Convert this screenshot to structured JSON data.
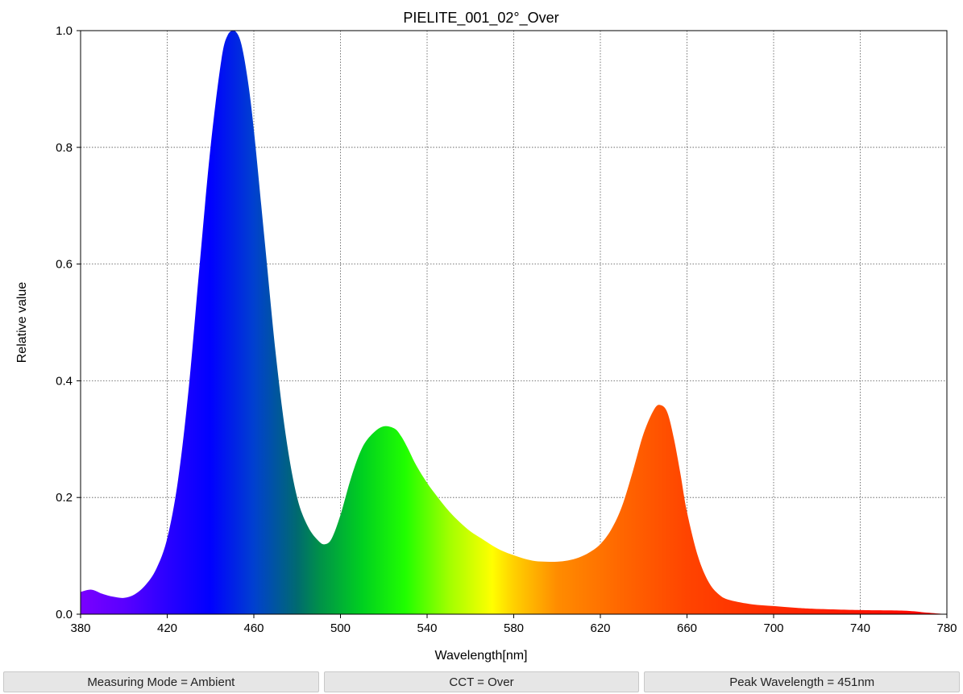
{
  "chart_data": {
    "type": "area",
    "title": "PIELITE_001_02°_Over",
    "xlabel": "Wavelength[nm]",
    "ylabel": "Relative value",
    "xlim": [
      380,
      780
    ],
    "ylim": [
      0,
      1.0
    ],
    "grid": true,
    "x_ticks": [
      380,
      420,
      460,
      500,
      540,
      580,
      620,
      660,
      700,
      740,
      780
    ],
    "y_ticks": [
      0.0,
      0.2,
      0.4,
      0.6,
      0.8,
      1.0
    ],
    "x_tick_labels": [
      "380",
      "420",
      "460",
      "500",
      "540",
      "580",
      "620",
      "660",
      "700",
      "740",
      "780"
    ],
    "y_tick_labels": [
      "0.0",
      "0.2",
      "0.4",
      "0.6",
      "0.8",
      "1.0"
    ],
    "x": [
      380,
      385,
      390,
      395,
      400,
      405,
      410,
      415,
      420,
      425,
      430,
      435,
      440,
      445,
      448,
      451,
      454,
      457,
      460,
      465,
      470,
      475,
      480,
      485,
      490,
      493,
      496,
      500,
      505,
      510,
      515,
      520,
      525,
      528,
      531,
      535,
      540,
      545,
      550,
      555,
      560,
      565,
      570,
      575,
      580,
      585,
      590,
      595,
      600,
      605,
      610,
      615,
      620,
      625,
      630,
      635,
      640,
      645,
      648,
      651,
      654,
      657,
      660,
      665,
      670,
      675,
      680,
      690,
      700,
      710,
      720,
      740,
      760,
      770,
      780
    ],
    "y": [
      0.038,
      0.042,
      0.035,
      0.03,
      0.028,
      0.034,
      0.05,
      0.078,
      0.13,
      0.23,
      0.39,
      0.6,
      0.8,
      0.95,
      0.993,
      1.0,
      0.98,
      0.92,
      0.83,
      0.64,
      0.45,
      0.3,
      0.2,
      0.15,
      0.125,
      0.12,
      0.13,
      0.17,
      0.235,
      0.285,
      0.31,
      0.322,
      0.318,
      0.305,
      0.285,
      0.255,
      0.225,
      0.2,
      0.177,
      0.158,
      0.142,
      0.13,
      0.118,
      0.108,
      0.101,
      0.095,
      0.091,
      0.09,
      0.09,
      0.092,
      0.097,
      0.106,
      0.12,
      0.145,
      0.185,
      0.245,
      0.31,
      0.352,
      0.358,
      0.345,
      0.3,
      0.24,
      0.175,
      0.1,
      0.055,
      0.033,
      0.024,
      0.017,
      0.014,
      0.011,
      0.009,
      0.007,
      0.006,
      0.003,
      0.0
    ],
    "fill": "visible-spectrum-gradient"
  },
  "status": {
    "measuring_mode": "Measuring Mode = Ambient",
    "cct": "CCT = Over",
    "peak_wavelength": "Peak Wavelength = 451nm"
  },
  "colors": {
    "background": "#ffffff",
    "grid": "#555555",
    "axis": "#000000",
    "status_bg": "#e6e6e6"
  }
}
